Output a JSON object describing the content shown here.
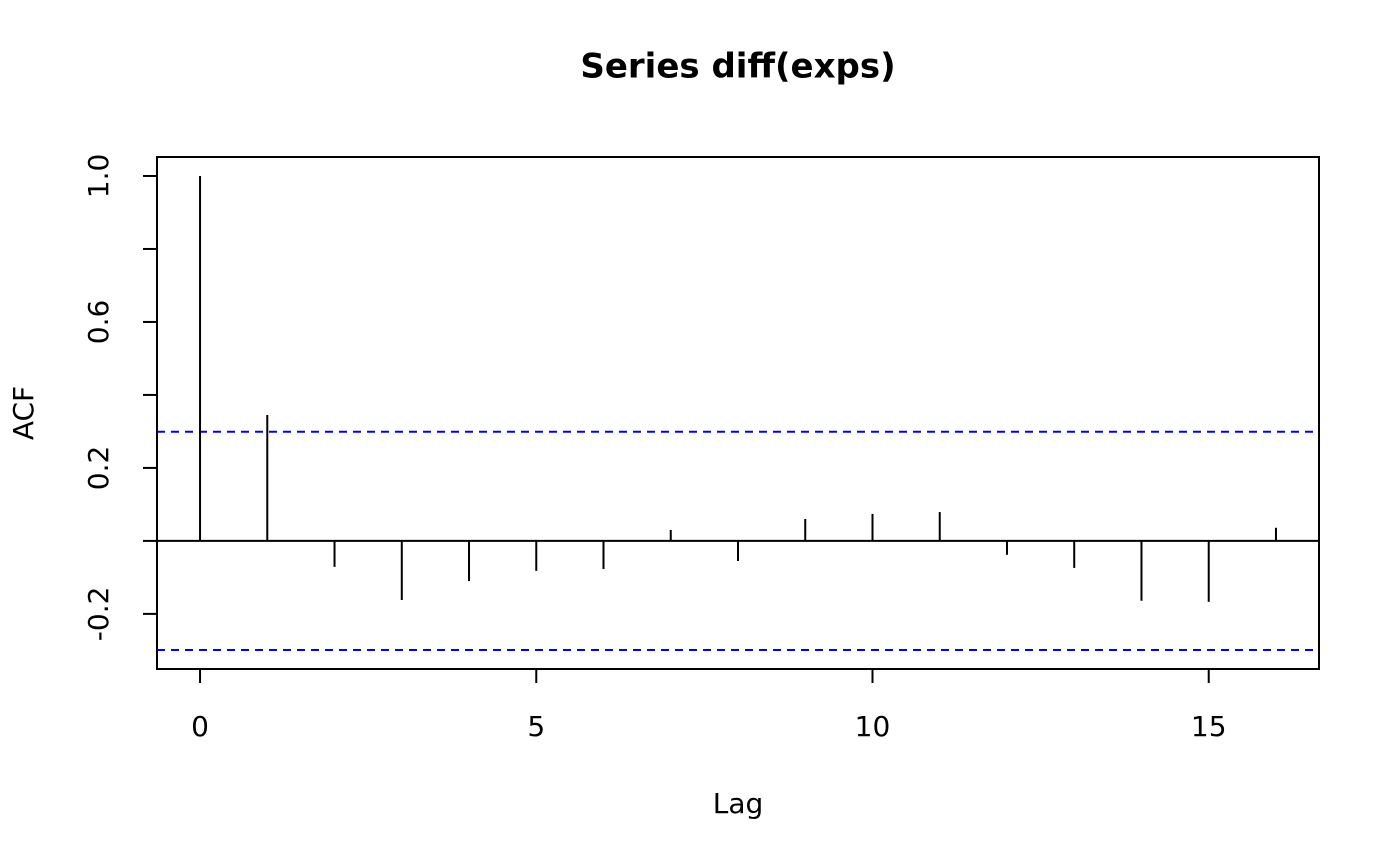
{
  "chart_data": {
    "type": "acf",
    "title": "Series  diff(exps)",
    "x_label": "Lag",
    "y_label": "ACF",
    "x": [
      0,
      1,
      2,
      3,
      4,
      5,
      6,
      7,
      8,
      9,
      10,
      11,
      12,
      13,
      14,
      15,
      16
    ],
    "values": [
      1.0,
      0.345,
      -0.071,
      -0.162,
      -0.11,
      -0.082,
      -0.077,
      0.03,
      -0.055,
      0.06,
      0.074,
      0.079,
      -0.038,
      -0.074,
      -0.164,
      -0.167,
      0.036
    ],
    "color": "#000000",
    "ci_lines": [
      0.299,
      -0.299
    ],
    "ci_color": "#0000ff",
    "xlim": [
      -0.64,
      16.64
    ],
    "ylim": [
      -0.351,
      1.052
    ],
    "xticks": [
      0,
      5,
      10,
      15
    ],
    "yticks": [
      -0.2,
      {
        "value": 0,
        "label": null
      },
      0.2,
      {
        "value": 0.4,
        "label": null
      },
      0.6,
      {
        "value": 0.8,
        "label": null
      },
      {
        "value": 1.0,
        "label": "1.0"
      }
    ]
  }
}
